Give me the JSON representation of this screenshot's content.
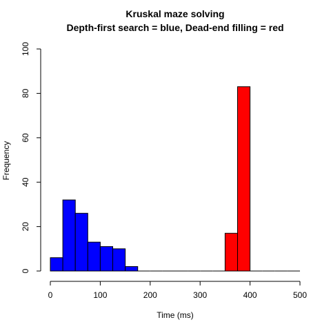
{
  "chart_data": {
    "type": "bar",
    "title": "Kruskal maze solving",
    "subtitle": "Depth-first search = blue, Dead-end filling = red",
    "xlabel": "Time (ms)",
    "ylabel": "Frequency",
    "xlim": [
      0,
      500
    ],
    "ylim": [
      0,
      100
    ],
    "xticks": [
      0,
      100,
      200,
      300,
      400,
      500
    ],
    "yticks": [
      0,
      20,
      40,
      60,
      80,
      100
    ],
    "grid": false,
    "legend": "none",
    "bin_width": 25,
    "series": [
      {
        "color": "#0000ff",
        "bins": [
          {
            "x0": 0,
            "x1": 25,
            "count": 6
          },
          {
            "x0": 25,
            "x1": 50,
            "count": 32
          },
          {
            "x0": 50,
            "x1": 75,
            "count": 26
          },
          {
            "x0": 75,
            "x1": 100,
            "count": 13
          },
          {
            "x0": 100,
            "x1": 125,
            "count": 11
          },
          {
            "x0": 125,
            "x1": 150,
            "count": 10
          },
          {
            "x0": 150,
            "x1": 175,
            "count": 2
          },
          {
            "x0": 175,
            "x1": 200,
            "count": 0
          },
          {
            "x0": 200,
            "x1": 225,
            "count": 0
          },
          {
            "x0": 225,
            "x1": 250,
            "count": 0
          },
          {
            "x0": 250,
            "x1": 275,
            "count": 0
          },
          {
            "x0": 275,
            "x1": 300,
            "count": 0
          },
          {
            "x0": 300,
            "x1": 325,
            "count": 0
          },
          {
            "x0": 325,
            "x1": 350,
            "count": 0
          },
          {
            "x0": 350,
            "x1": 375,
            "count": 0
          },
          {
            "x0": 375,
            "x1": 400,
            "count": 0
          },
          {
            "x0": 400,
            "x1": 425,
            "count": 0
          },
          {
            "x0": 425,
            "x1": 450,
            "count": 0
          },
          {
            "x0": 450,
            "x1": 475,
            "count": 0
          },
          {
            "x0": 475,
            "x1": 500,
            "count": 0
          }
        ]
      },
      {
        "color": "#ff0000",
        "bins": [
          {
            "x0": 350,
            "x1": 375,
            "count": 17
          },
          {
            "x0": 375,
            "x1": 400,
            "count": 83
          }
        ]
      }
    ]
  }
}
